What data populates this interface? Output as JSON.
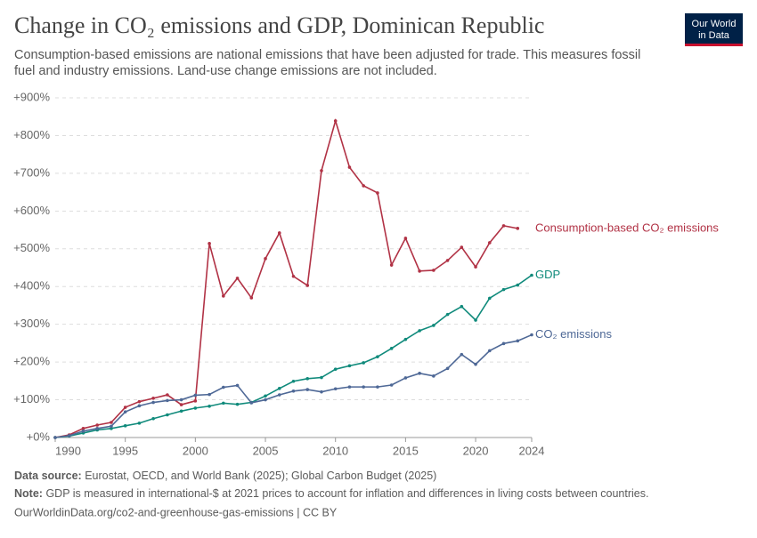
{
  "chart_data": {
    "type": "line",
    "title": "Change in CO₂ emissions and GDP, Dominican Republic",
    "subtitle": [
      "Consumption-based emissions are national emissions that have been adjusted for trade. This measures fossil",
      "fuel and industry emissions. Land-use change emissions are not included."
    ],
    "x": [
      1990,
      1991,
      1992,
      1993,
      1994,
      1995,
      1996,
      1997,
      1998,
      1999,
      2000,
      2001,
      2002,
      2003,
      2004,
      2005,
      2006,
      2007,
      2008,
      2009,
      2010,
      2011,
      2012,
      2013,
      2014,
      2015,
      2016,
      2017,
      2018,
      2019,
      2020,
      2021,
      2022,
      2023,
      2024
    ],
    "series": [
      {
        "name": "Consumption-based CO₂ emissions",
        "color": "#b13245",
        "values": [
          0,
          7,
          24,
          33,
          40,
          80,
          95,
          104,
          113,
          87,
          97,
          514,
          375,
          422,
          370,
          474,
          542,
          427,
          403,
          707,
          839,
          716,
          667,
          648,
          457,
          528,
          441,
          443,
          469,
          504,
          452,
          516,
          561,
          554,
          null
        ]
      },
      {
        "name": "GDP",
        "color": "#0f8a7b",
        "values": [
          0,
          4,
          12,
          20,
          24,
          31,
          38,
          50,
          60,
          70,
          78,
          83,
          91,
          88,
          93,
          110,
          130,
          149,
          156,
          159,
          181,
          190,
          198,
          214,
          236,
          260,
          283,
          297,
          326,
          347,
          311,
          369,
          392,
          404,
          430
        ]
      },
      {
        "name": "CO₂ emissions",
        "color": "#4e6896",
        "values": [
          0,
          5,
          17,
          24,
          30,
          68,
          84,
          93,
          98,
          100,
          112,
          114,
          133,
          138,
          92,
          100,
          113,
          123,
          127,
          121,
          129,
          134,
          134,
          134,
          139,
          158,
          170,
          163,
          183,
          220,
          194,
          230,
          249,
          256,
          272
        ]
      }
    ],
    "xlim": [
      1990,
      2024
    ],
    "xticks": [
      1990,
      1995,
      2000,
      2005,
      2010,
      2015,
      2020,
      2024
    ],
    "ylim": [
      0,
      900
    ],
    "yticks": [
      {
        "value": 0,
        "label": "+0%"
      },
      {
        "value": 100,
        "label": "+100%"
      },
      {
        "value": 200,
        "label": "+200%"
      },
      {
        "value": 300,
        "label": "+300%"
      },
      {
        "value": 400,
        "label": "+400%"
      },
      {
        "value": 500,
        "label": "+500%"
      },
      {
        "value": 600,
        "label": "+600%"
      },
      {
        "value": 700,
        "label": "+700%"
      },
      {
        "value": 800,
        "label": "+800%"
      },
      {
        "value": 900,
        "label": "+900%"
      }
    ],
    "grid": true,
    "logo": [
      "Our World",
      "in Data"
    ],
    "source": {
      "label": "Data source:",
      "text": "Eurostat, OECD, and World Bank (2025); Global Carbon Budget (2025)"
    },
    "note": {
      "label": "Note:",
      "text": "GDP is measured in international-$ at 2021 prices to account for inflation and differences in living costs between countries."
    },
    "url": "OurWorldinData.org/co2-and-greenhouse-gas-emissions | CC BY"
  }
}
